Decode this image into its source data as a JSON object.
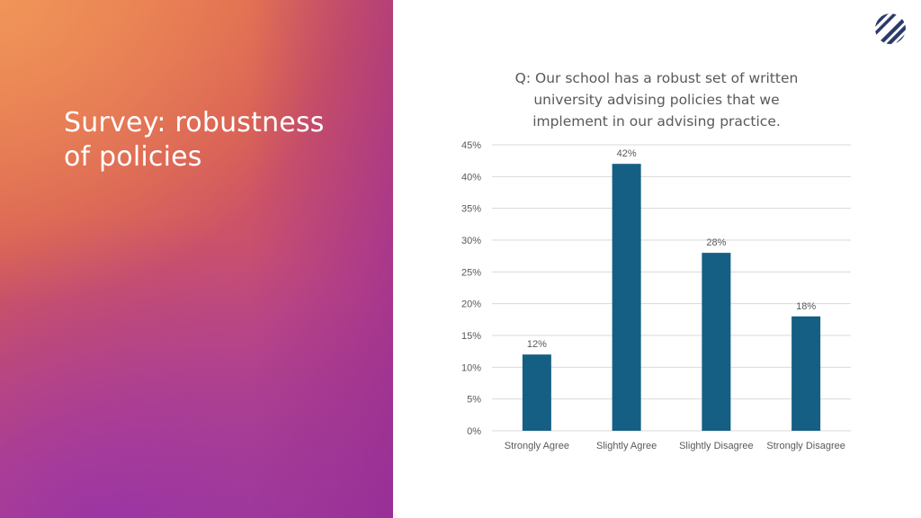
{
  "slide": {
    "title": "Survey: robustness\nof policies"
  },
  "logo": {
    "icon": "striped-circle-logo-icon",
    "color": "#2c3a6b"
  },
  "colors": {
    "bar": "#155f84",
    "axis_text": "#595959",
    "grid": "#d9d9d9"
  },
  "chart_data": {
    "type": "bar",
    "title": "Q: Our school has a robust set of written\nuniversity advising policies that we\nimplement in our advising practice.",
    "categories": [
      "Strongly Agree",
      "Slightly Agree",
      "Slightly Disagree",
      "Strongly Disagree"
    ],
    "values": [
      12,
      42,
      28,
      18
    ],
    "data_labels": [
      "12%",
      "42%",
      "28%",
      "18%"
    ],
    "ylim": [
      0,
      45
    ],
    "yticks": [
      0,
      5,
      10,
      15,
      20,
      25,
      30,
      35,
      40,
      45
    ],
    "ytick_labels": [
      "0%",
      "5%",
      "10%",
      "15%",
      "20%",
      "25%",
      "30%",
      "35%",
      "40%",
      "45%"
    ],
    "grid": true,
    "legend": "none"
  }
}
